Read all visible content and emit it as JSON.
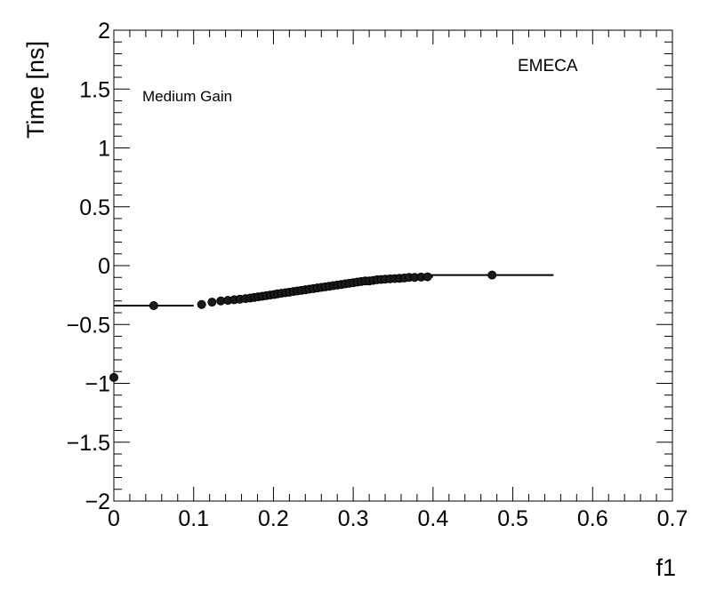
{
  "chart_data": {
    "type": "scatter",
    "title": "",
    "xlabel": "f1",
    "ylabel": "Time [ns]",
    "xlim": [
      0,
      0.7
    ],
    "ylim": [
      -2,
      2
    ],
    "grid": false,
    "xticks": [
      0,
      0.1,
      0.2,
      0.3,
      0.4,
      0.5,
      0.6,
      0.7
    ],
    "xtick_labels": [
      "0",
      "0.1",
      "0.2",
      "0.3",
      "0.4",
      "0.5",
      "0.6",
      "0.7"
    ],
    "yticks": [
      -2,
      -1.5,
      -1,
      -0.5,
      0,
      0.5,
      1,
      1.5,
      2
    ],
    "ytick_labels": [
      "−2",
      "−1.5",
      "−1",
      "−0.5",
      "0",
      "0.5",
      "1",
      "1.5",
      "2"
    ],
    "annotations": [
      {
        "text": "Medium Gain"
      },
      {
        "text": "EMECA"
      }
    ],
    "series": [
      {
        "x": [
          0.0,
          0.05,
          0.11,
          0.123,
          0.134,
          0.143,
          0.151,
          0.158,
          0.165,
          0.171,
          0.176,
          0.181,
          0.186,
          0.191,
          0.196,
          0.201,
          0.205,
          0.21,
          0.215,
          0.22,
          0.225,
          0.23,
          0.235,
          0.24,
          0.245,
          0.25,
          0.255,
          0.26,
          0.265,
          0.27,
          0.275,
          0.28,
          0.285,
          0.29,
          0.295,
          0.3,
          0.305,
          0.31,
          0.315,
          0.32,
          0.325,
          0.33,
          0.335,
          0.34,
          0.346,
          0.352,
          0.358,
          0.364,
          0.37,
          0.377,
          0.385,
          0.393,
          0.474
        ],
        "y": [
          -0.95,
          -0.34,
          -0.33,
          -0.31,
          -0.3,
          -0.295,
          -0.29,
          -0.285,
          -0.28,
          -0.275,
          -0.27,
          -0.265,
          -0.26,
          -0.255,
          -0.25,
          -0.245,
          -0.24,
          -0.235,
          -0.23,
          -0.225,
          -0.22,
          -0.215,
          -0.21,
          -0.205,
          -0.2,
          -0.195,
          -0.19,
          -0.185,
          -0.18,
          -0.175,
          -0.17,
          -0.165,
          -0.16,
          -0.155,
          -0.15,
          -0.145,
          -0.14,
          -0.135,
          -0.13,
          -0.13,
          -0.125,
          -0.12,
          -0.118,
          -0.115,
          -0.112,
          -0.11,
          -0.108,
          -0.105,
          -0.1,
          -0.1,
          -0.097,
          -0.095,
          -0.08
        ],
        "xerr": [
          0.002,
          0.05,
          0.005,
          0.004,
          0.004,
          0.003,
          0.003,
          0.003,
          0.003,
          0.002,
          0.002,
          0.002,
          0.002,
          0.002,
          0.002,
          0.002,
          0.002,
          0.002,
          0.002,
          0.002,
          0.002,
          0.002,
          0.002,
          0.002,
          0.002,
          0.002,
          0.002,
          0.002,
          0.002,
          0.002,
          0.002,
          0.002,
          0.002,
          0.002,
          0.002,
          0.002,
          0.002,
          0.002,
          0.002,
          0.002,
          0.002,
          0.002,
          0.002,
          0.002,
          0.002,
          0.003,
          0.003,
          0.003,
          0.003,
          0.003,
          0.004,
          0.007,
          0.077
        ],
        "yerr": [
          0.02,
          0.01,
          0.012,
          0.012,
          0.012,
          0.012,
          0.015,
          0.015,
          0.015,
          0.018,
          0.018,
          0.02,
          0.022,
          0.024,
          0.025,
          0.028,
          0.03,
          0.03,
          0.03,
          0.03,
          0.03,
          0.03,
          0.03,
          0.03,
          0.03,
          0.03,
          0.03,
          0.03,
          0.03,
          0.03,
          0.03,
          0.03,
          0.028,
          0.028,
          0.028,
          0.026,
          0.026,
          0.025,
          0.025,
          0.024,
          0.024,
          0.022,
          0.022,
          0.02,
          0.02,
          0.018,
          0.018,
          0.016,
          0.015,
          0.015,
          0.014,
          0.012,
          0.01
        ]
      }
    ]
  }
}
